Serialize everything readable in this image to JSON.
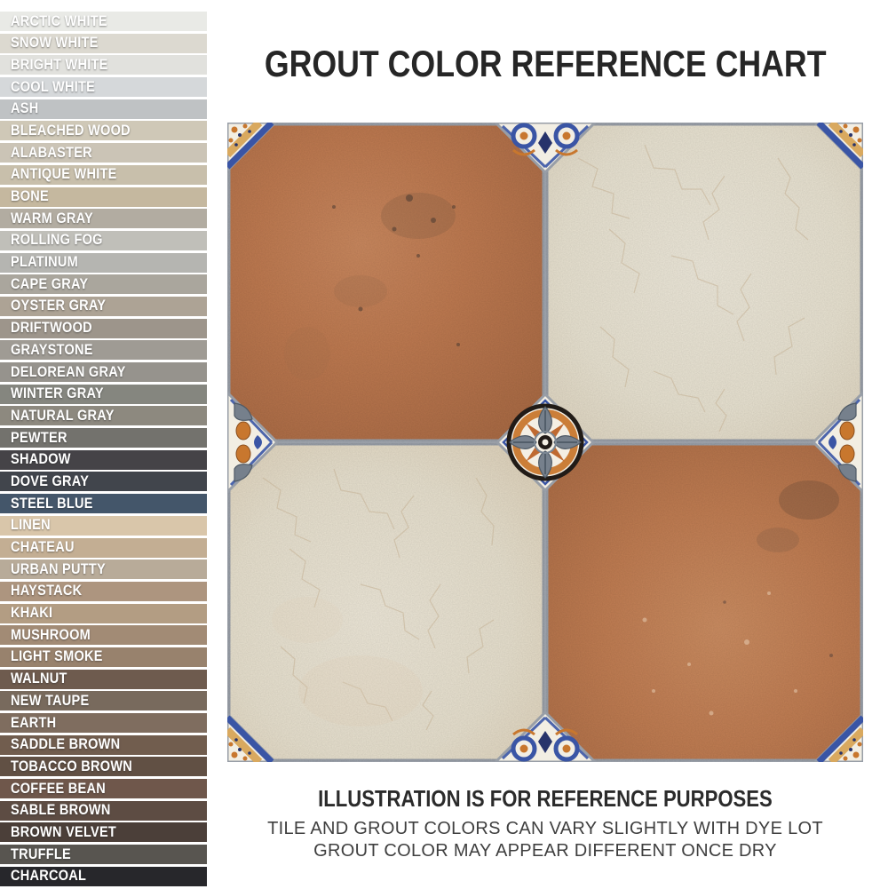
{
  "title": "GROUT COLOR REFERENCE CHART",
  "footer": {
    "heading": "ILLUSTRATION IS FOR REFERENCE PURPOSES",
    "note1": "TILE AND GROUT COLORS CAN VARY SLIGHTLY WITH DYE LOT",
    "note2": "GROUT COLOR MAY APPEAR DIFFERENT ONCE DRY"
  },
  "swatches": [
    {
      "name": "ARCTIC WHITE",
      "color": "#e9eae6"
    },
    {
      "name": "SNOW WHITE",
      "color": "#dcd9d0"
    },
    {
      "name": "BRIGHT WHITE",
      "color": "#e1e1dd"
    },
    {
      "name": "COOL WHITE",
      "color": "#d5d8da"
    },
    {
      "name": "ASH",
      "color": "#bfc2c4"
    },
    {
      "name": "BLEACHED WOOD",
      "color": "#cfc8b7"
    },
    {
      "name": "ALABASTER",
      "color": "#cbc4b6"
    },
    {
      "name": "ANTIQUE WHITE",
      "color": "#c8bfab"
    },
    {
      "name": "BONE",
      "color": "#c5b89f"
    },
    {
      "name": "WARM GRAY",
      "color": "#b2aca1"
    },
    {
      "name": "ROLLING FOG",
      "color": "#c0bfb9"
    },
    {
      "name": "PLATINUM",
      "color": "#b5b5b1"
    },
    {
      "name": "CAPE GRAY",
      "color": "#aaa69d"
    },
    {
      "name": "OYSTER GRAY",
      "color": "#ada395"
    },
    {
      "name": "DRIFTWOOD",
      "color": "#9d958b"
    },
    {
      "name": "GRAYSTONE",
      "color": "#9f9b94"
    },
    {
      "name": "DELOREAN GRAY",
      "color": "#96938d"
    },
    {
      "name": "WINTER GRAY",
      "color": "#85867f"
    },
    {
      "name": "NATURAL GRAY",
      "color": "#8d897f"
    },
    {
      "name": "PEWTER",
      "color": "#73726d"
    },
    {
      "name": "SHADOW",
      "color": "#454347"
    },
    {
      "name": "DOVE GRAY",
      "color": "#41454c"
    },
    {
      "name": "STEEL BLUE",
      "color": "#44566a"
    },
    {
      "name": "LINEN",
      "color": "#d9c6aa"
    },
    {
      "name": "CHATEAU",
      "color": "#c3ae93"
    },
    {
      "name": "URBAN PUTTY",
      "color": "#b8ab99"
    },
    {
      "name": "HAYSTACK",
      "color": "#ad957f"
    },
    {
      "name": "KHAKI",
      "color": "#b39d83"
    },
    {
      "name": "MUSHROOM",
      "color": "#a28b75"
    },
    {
      "name": "LIGHT SMOKE",
      "color": "#98826d"
    },
    {
      "name": "WALNUT",
      "color": "#6e5b4e"
    },
    {
      "name": "NEW TAUPE",
      "color": "#786a5d"
    },
    {
      "name": "EARTH",
      "color": "#7f6d5f"
    },
    {
      "name": "SADDLE BROWN",
      "color": "#715d4e"
    },
    {
      "name": "TOBACCO BROWN",
      "color": "#615044"
    },
    {
      "name": "COFFEE BEAN",
      "color": "#6f574b"
    },
    {
      "name": "SABLE BROWN",
      "color": "#5d4c43"
    },
    {
      "name": "BROWN VELVET",
      "color": "#4b3f39"
    },
    {
      "name": "TRUFFLE",
      "color": "#585550"
    },
    {
      "name": "CHARCOAL",
      "color": "#27272b"
    }
  ],
  "illustration": {
    "tile_colors": {
      "terracotta": "#bd7950",
      "cream": "#e9e3d4",
      "grout": "#a2a7af",
      "ornament_white": "#f2eee3",
      "ornament_blue": "#3a55a5",
      "ornament_navy": "#27336b",
      "ornament_orange": "#c8772e",
      "ornament_tan": "#d9a95f",
      "leaf_slate": "#76808c",
      "medallion_ring": "#211b17"
    }
  }
}
